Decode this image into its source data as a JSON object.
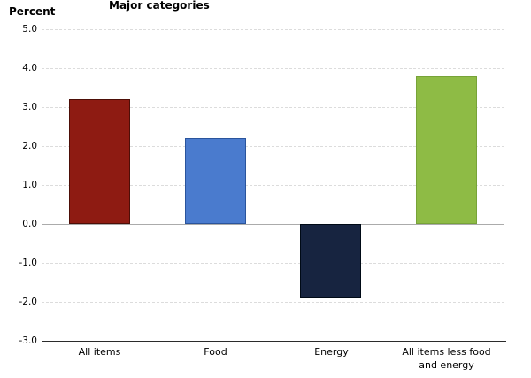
{
  "header": {
    "y_axis_title": "Percent",
    "chart_title": "Major categories"
  },
  "chart_data": {
    "type": "bar",
    "title": "Major categories",
    "xlabel": "",
    "ylabel": "Percent",
    "categories": [
      "All items",
      "Food",
      "Energy",
      "All items less food and energy"
    ],
    "category_label_lines": [
      [
        "All items"
      ],
      [
        "Food"
      ],
      [
        "Energy"
      ],
      [
        "All items less food",
        "and energy"
      ]
    ],
    "values": [
      3.2,
      2.2,
      -1.9,
      3.8
    ],
    "ylim": [
      -3.0,
      5.0
    ],
    "ytick_step": 1.0,
    "ytick_labels": [
      "5.0",
      "4.0",
      "3.0",
      "2.0",
      "1.0",
      "0.0",
      "-1.0",
      "-2.0",
      "-3.0"
    ],
    "grid": "horizontal-dashed",
    "legend_position": "none",
    "bar_fill_colors": [
      "#8e1b12",
      "#4a7bce",
      "#172440",
      "#8ebb45"
    ],
    "bar_border_colors": [
      "#4d0e07",
      "#2a549c",
      "#000a16",
      "#77a338"
    ],
    "gridline_color": "#dcdcdc",
    "zero_line_color": "#ababab",
    "axis_line_color": "#2b2b2b"
  }
}
